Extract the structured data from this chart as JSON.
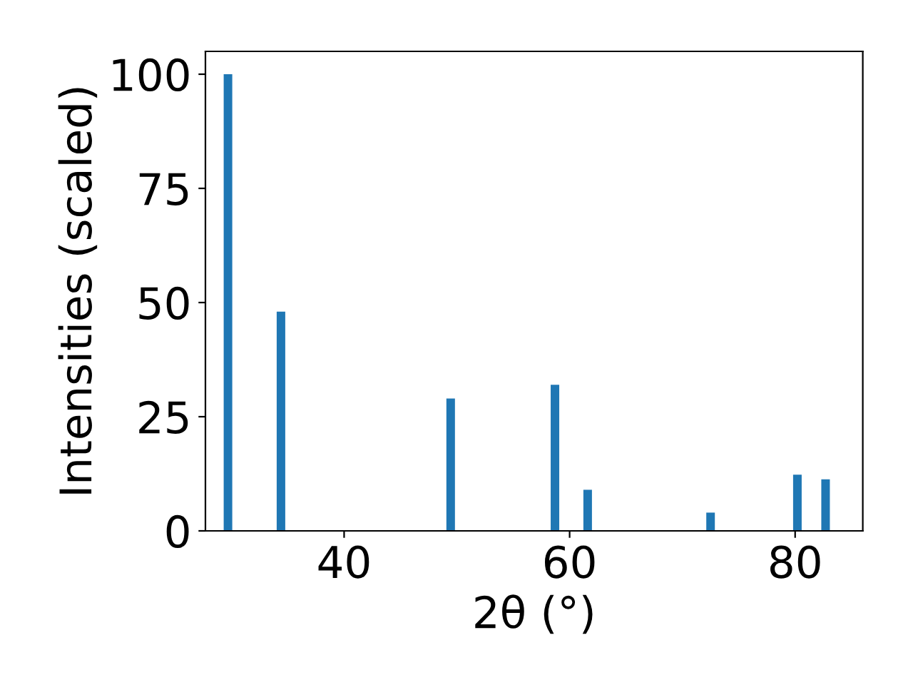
{
  "chart_data": {
    "type": "bar",
    "xlabel": "2θ (°)",
    "ylabel": "Intensities (scaled)",
    "x": [
      29.7,
      34.4,
      49.45,
      58.7,
      61.6,
      72.5,
      80.2,
      82.7
    ],
    "values": [
      100,
      48,
      29,
      32,
      9,
      4,
      12.3,
      11.3
    ],
    "color": "#1f77b4",
    "xlim": [
      27.7,
      86
    ],
    "xticks": [
      40,
      60,
      80
    ],
    "ylim": [
      0,
      105
    ],
    "yticks": [
      0,
      25,
      50,
      75,
      100
    ],
    "grid": false,
    "legend": false
  }
}
